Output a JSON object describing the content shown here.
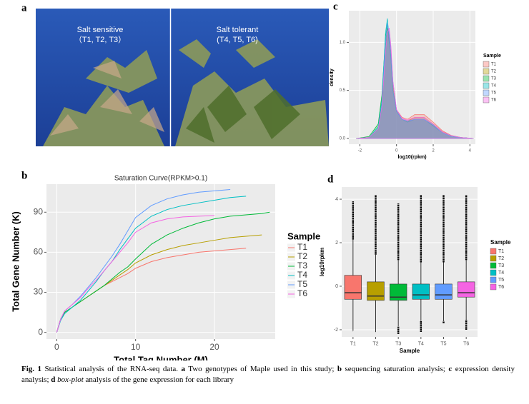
{
  "figure": {
    "panel_labels": [
      "a",
      "b",
      "c",
      "d"
    ],
    "photo": {
      "left_label": "Salt sensitive",
      "left_samples": "（T1, T2, T3）",
      "right_label": "Salt tolerant",
      "right_samples": "(T4, T5, T6)"
    }
  },
  "chart_data": [
    {
      "type": "line",
      "title": "Saturation Curve(RPKM>0.1)",
      "x_label": "Total Tag Number (M)",
      "y_label": "Total Gene Number (K)",
      "x": [
        0,
        0.5,
        1,
        2,
        3,
        4,
        5,
        6,
        7,
        8,
        9,
        10,
        12,
        14,
        16,
        18,
        20,
        22,
        24,
        26,
        27
      ],
      "xlim": [
        -1.3,
        27.7
      ],
      "xticks": [
        0,
        10,
        20
      ],
      "ylim": [
        -5,
        111
      ],
      "yticks": [
        0,
        30,
        60,
        90
      ],
      "grid": true,
      "legend_title": "Sample",
      "legend_position": "right",
      "series": [
        {
          "name": "T1",
          "color": "#F8766D",
          "values": [
            0,
            10,
            15,
            19,
            23,
            27,
            31,
            35,
            38,
            41,
            44,
            48,
            53,
            56,
            58,
            60,
            61,
            62,
            63,
            null,
            null
          ]
        },
        {
          "name": "T2",
          "color": "#B79F00",
          "values": [
            0,
            10,
            15,
            19,
            23,
            27,
            31,
            35,
            39,
            43,
            47,
            52,
            58,
            62,
            65,
            67,
            69,
            71,
            72,
            73,
            null
          ]
        },
        {
          "name": "T3",
          "color": "#00BA38",
          "values": [
            0,
            10,
            15,
            19,
            23,
            27,
            31,
            35,
            40,
            45,
            49,
            55,
            66,
            73,
            78,
            82,
            85,
            87,
            88,
            89,
            90
          ]
        },
        {
          "name": "T4",
          "color": "#00BFC4",
          "values": [
            0,
            9,
            14,
            19,
            24,
            31,
            38,
            46,
            53,
            62,
            70,
            78,
            87,
            92,
            95,
            97,
            99,
            101,
            102,
            null,
            null
          ]
        },
        {
          "name": "T5",
          "color": "#619CFF",
          "values": [
            0,
            10,
            16,
            21,
            27,
            34,
            41,
            49,
            57,
            66,
            76,
            86,
            95,
            100,
            103,
            105,
            106,
            107,
            null,
            null,
            null
          ]
        },
        {
          "name": "T6",
          "color": "#F564E3",
          "values": [
            0,
            10,
            16,
            21,
            26,
            33,
            39,
            46,
            53,
            60,
            67,
            75,
            82,
            85,
            86.5,
            87,
            87.5,
            null,
            null,
            null,
            null
          ]
        }
      ]
    },
    {
      "type": "density",
      "x_label": "log10(rpkm)",
      "y_label": "density",
      "x": [
        -2.2,
        -1.5,
        -1,
        -0.8,
        -0.6,
        -0.5,
        -0.4,
        -0.3,
        -0.2,
        0,
        0.3,
        0.6,
        1,
        1.5,
        2,
        2.5,
        3,
        3.5,
        4.2
      ],
      "xlim": [
        -2.6,
        4.3
      ],
      "xticks": [
        -2,
        0,
        2,
        4
      ],
      "ylim": [
        -0.06,
        1.33
      ],
      "yticks": [
        {
          "value": 0,
          "label": "0.0"
        },
        0.5,
        {
          "value": 1,
          "label": "1.0"
        }
      ],
      "grid": true,
      "legend_title": "Sample",
      "legend_position": "right",
      "series": [
        {
          "name": "T1",
          "color": "#F8766D",
          "values": [
            0,
            0.01,
            0.1,
            0.35,
            0.9,
            1.1,
            1.0,
            0.8,
            0.5,
            0.3,
            0.22,
            0.2,
            0.25,
            0.25,
            0.17,
            0.08,
            0.03,
            0.01,
            0
          ]
        },
        {
          "name": "T2",
          "color": "#B79F00",
          "values": [
            0,
            0.01,
            0.1,
            0.35,
            0.95,
            1.15,
            1.05,
            0.85,
            0.55,
            0.3,
            0.2,
            0.18,
            0.22,
            0.22,
            0.15,
            0.07,
            0.03,
            0.01,
            0
          ]
        },
        {
          "name": "T3",
          "color": "#00BA38",
          "values": [
            0,
            0.02,
            0.15,
            0.45,
            1.05,
            1.2,
            1.0,
            0.85,
            0.5,
            0.28,
            0.2,
            0.17,
            0.2,
            0.2,
            0.13,
            0.06,
            0.02,
            0.01,
            0
          ]
        },
        {
          "name": "T4",
          "color": "#00BFC4",
          "values": [
            0,
            0.01,
            0.12,
            0.4,
            1.1,
            1.25,
            1.05,
            0.8,
            0.5,
            0.28,
            0.2,
            0.18,
            0.2,
            0.2,
            0.14,
            0.06,
            0.02,
            0.01,
            0
          ]
        },
        {
          "name": "T5",
          "color": "#619CFF",
          "values": [
            0,
            0.01,
            0.1,
            0.35,
            1.0,
            1.2,
            1.1,
            0.9,
            0.6,
            0.3,
            0.2,
            0.18,
            0.2,
            0.2,
            0.14,
            0.06,
            0.02,
            0.01,
            0
          ]
        },
        {
          "name": "T6",
          "color": "#F564E3",
          "values": [
            0,
            0.01,
            0.1,
            0.33,
            0.9,
            1.1,
            1.15,
            0.95,
            0.6,
            0.3,
            0.21,
            0.19,
            0.22,
            0.22,
            0.15,
            0.07,
            0.03,
            0.01,
            0
          ]
        }
      ]
    },
    {
      "type": "box",
      "x_label": "Sample",
      "y_label": "log10rpkm",
      "categories": [
        "T1",
        "T2",
        "T3",
        "T4",
        "T5",
        "T6"
      ],
      "colors": [
        "#F8766D",
        "#B79F00",
        "#00BA38",
        "#00BFC4",
        "#619CFF",
        "#F564E3"
      ],
      "min": [
        -2.05,
        -2.1,
        -2.2,
        -2.1,
        -1.7,
        -2.0
      ],
      "lower": [
        -2.05,
        -2.1,
        -1.85,
        -1.6,
        -1.6,
        -1.55
      ],
      "q1": [
        -0.6,
        -0.65,
        -0.65,
        -0.6,
        -0.6,
        -0.5
      ],
      "median": [
        -0.3,
        -0.45,
        -0.5,
        -0.4,
        -0.4,
        -0.3
      ],
      "q3": [
        0.5,
        0.2,
        0.1,
        0.1,
        0.1,
        0.2
      ],
      "upper": [
        2.15,
        1.45,
        1.2,
        1.1,
        1.1,
        1.2
      ],
      "max": [
        3.9,
        4.2,
        3.8,
        4.2,
        4.2,
        4.2
      ],
      "ylim": [
        -2.33,
        4.56
      ],
      "yticks": [
        -2,
        0,
        2,
        4
      ],
      "grid": true,
      "legend_title": "Sample",
      "legend_position": "right"
    }
  ],
  "caption": [
    {
      "text": "Fig. 1",
      "style": "bold"
    },
    {
      "text": "  Statistical analysis of the RNA-seq data. ",
      "style": "normal"
    },
    {
      "text": "a",
      "style": "bold"
    },
    {
      "text": " Two genotypes of Maple used in this study; ",
      "style": "normal"
    },
    {
      "text": "b",
      "style": "bold"
    },
    {
      "text": " sequencing saturation analysis; ",
      "style": "normal"
    },
    {
      "text": "c",
      "style": "bold"
    },
    {
      "text": " expression density analysis; ",
      "style": "normal"
    },
    {
      "text": "d",
      "style": "bold"
    },
    {
      "text": " ",
      "style": "normal"
    },
    {
      "text": "box-plot",
      "style": "italic"
    },
    {
      "text": " analysis of the gene expression for each library",
      "style": "normal"
    }
  ]
}
